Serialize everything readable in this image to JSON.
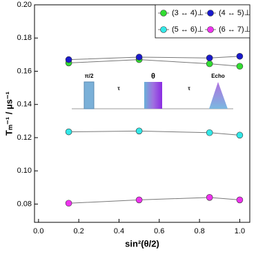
{
  "chart_data": {
    "type": "line",
    "xlabel": "sin²(θ/2)",
    "ylabel": "Tₘ⁻¹ / µs⁻¹",
    "x": [
      0.15,
      0.5,
      0.85,
      1.0
    ],
    "xlim": [
      -0.02,
      1.05
    ],
    "ylim": [
      0.069,
      0.2
    ],
    "xticks": [
      {
        "value": 0,
        "label": "0.0"
      },
      0.2,
      0.4,
      0.6,
      0.8,
      {
        "value": 1,
        "label": "1.0"
      }
    ],
    "yticks": [
      0.08,
      {
        "value": 0.1,
        "label": "0.10"
      },
      0.12,
      0.14,
      0.16,
      0.18,
      {
        "value": 0.2,
        "label": "0.20"
      }
    ],
    "line_color": "#777777",
    "series": [
      {
        "name": "(3 ↔ 4)⊥",
        "color": "#33dd33",
        "values": [
          0.165,
          0.167,
          0.1645,
          0.163
        ]
      },
      {
        "name": "(4 ↔ 5)⊥",
        "color": "#1a1acc",
        "values": [
          0.167,
          0.1685,
          0.168,
          0.169
        ]
      },
      {
        "name": "(5 ↔ 6)⊥",
        "color": "#33e8e8",
        "values": [
          0.1235,
          0.124,
          0.123,
          0.1215
        ]
      },
      {
        "name": "(6 ↔ 7)⊥",
        "color": "#ee33ee",
        "values": [
          0.0805,
          0.0825,
          0.084,
          0.0825
        ]
      }
    ],
    "annotations": [
      "π/2",
      "τ",
      "θ",
      "τ",
      "Echo"
    ]
  }
}
